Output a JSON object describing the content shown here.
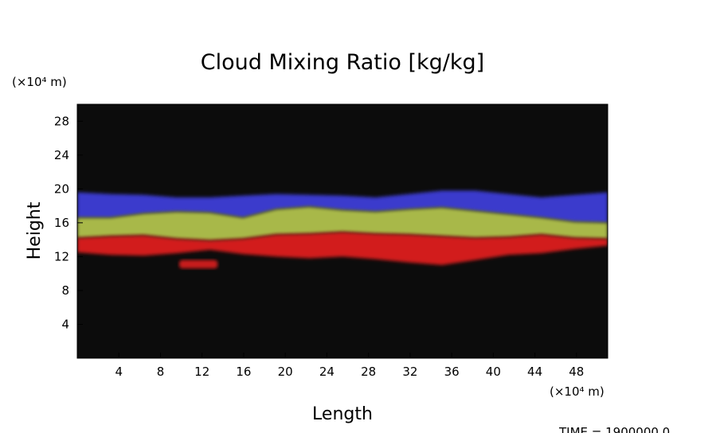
{
  "chart_data": {
    "type": "heatmap",
    "title": "Cloud Mixing Ratio [kg/kg]",
    "xlabel": "Length",
    "ylabel": "Height",
    "x_unit": "(×10⁴ m)",
    "y_unit": "(×10⁴ m)",
    "xlim": [
      0,
      51
    ],
    "ylim": [
      0,
      30
    ],
    "xticks": [
      "4",
      "8",
      "12",
      "16",
      "20",
      "24",
      "28",
      "32",
      "36",
      "40",
      "44",
      "48"
    ],
    "yticks": [
      "4",
      "8",
      "12",
      "16",
      "20",
      "24",
      "28"
    ],
    "background_color": "#0c0c0c",
    "footer": "TIME = 1900000.0",
    "layers": [
      {
        "color": "#3a3acc",
        "top": [
          19.6,
          19.4,
          19.3,
          19.0,
          19.0,
          19.2,
          19.4,
          19.3,
          19.2,
          19.0,
          19.4,
          19.8,
          19.8,
          19.4,
          19.0,
          19.3,
          19.6
        ]
      },
      {
        "color": "#a8b84a",
        "top": [
          16.6,
          16.6,
          17.1,
          17.3,
          17.2,
          16.6,
          17.6,
          17.9,
          17.5,
          17.3,
          17.6,
          17.8,
          17.4,
          17.0,
          16.6,
          16.1,
          16.0
        ]
      },
      {
        "color": "#d21d1d",
        "top": [
          14.2,
          14.4,
          14.5,
          14.1,
          13.9,
          14.1,
          14.6,
          14.7,
          14.9,
          14.7,
          14.6,
          14.4,
          14.2,
          14.3,
          14.6,
          14.2,
          14.1
        ]
      },
      {
        "color": "#c81a1a",
        "bottom": [
          12.5,
          12.2,
          12.1,
          12.4,
          12.8,
          12.3,
          12.0,
          11.8,
          12.0,
          11.7,
          11.3,
          11.0,
          11.6,
          12.2,
          12.4,
          12.9,
          13.3
        ]
      }
    ],
    "red_patches": [
      {
        "x0": 9.8,
        "x1": 13.5,
        "y0": 10.6,
        "y1": 11.6
      }
    ]
  }
}
